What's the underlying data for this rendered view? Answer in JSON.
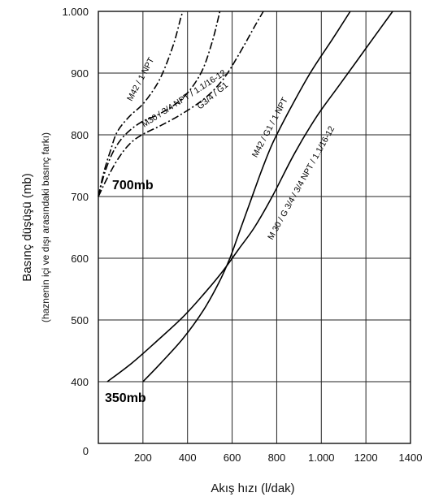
{
  "chart_data": {
    "type": "line",
    "xlabel": "Akış hızı (l/dak)",
    "ylabel": "Basınç düşüşü (mb)",
    "ylabel_sub": "(haznenin içi ve dışı arasındaki basınç farkı)",
    "xlim": [
      0,
      1400
    ],
    "ylim": [
      300,
      1000
    ],
    "x_ticks": [
      "0",
      "200",
      "400",
      "600",
      "800",
      "1.000",
      "1200",
      "1400"
    ],
    "y_ticks": [
      "400",
      "500",
      "600",
      "700",
      "800",
      "900",
      "1.000"
    ],
    "grid": true,
    "band_labels": [
      "700mb",
      "350mb"
    ],
    "series": [
      {
        "name": "M42 / 1 NPT",
        "style": "dashdot",
        "points": [
          [
            0,
            700
          ],
          [
            25,
            740
          ],
          [
            55,
            775
          ],
          [
            85,
            805
          ],
          [
            140,
            830
          ],
          [
            200,
            850
          ],
          [
            260,
            880
          ],
          [
            300,
            910
          ],
          [
            340,
            950
          ],
          [
            370,
            990
          ],
          [
            380,
            1000
          ]
        ]
      },
      {
        "name": "M30 / 3/4 NPT / 1.1/16-12",
        "style": "dashdot",
        "points": [
          [
            0,
            700
          ],
          [
            30,
            740
          ],
          [
            70,
            775
          ],
          [
            120,
            800
          ],
          [
            190,
            820
          ],
          [
            280,
            835
          ],
          [
            380,
            860
          ],
          [
            460,
            900
          ],
          [
            510,
            950
          ],
          [
            545,
            1000
          ]
        ]
      },
      {
        "name": "G3/4 / G1",
        "style": "dashdot",
        "points": [
          [
            0,
            700
          ],
          [
            40,
            730
          ],
          [
            90,
            762
          ],
          [
            140,
            785
          ],
          [
            195,
            800
          ],
          [
            280,
            815
          ],
          [
            380,
            835
          ],
          [
            480,
            860
          ],
          [
            560,
            890
          ],
          [
            630,
            930
          ],
          [
            700,
            975
          ],
          [
            740,
            1000
          ]
        ]
      },
      {
        "name": "M42 / G1 / 1 NPT",
        "style": "solid",
        "points": [
          [
            200,
            400
          ],
          [
            280,
            430
          ],
          [
            380,
            470
          ],
          [
            470,
            515
          ],
          [
            540,
            560
          ],
          [
            590,
            600
          ],
          [
            630,
            640
          ],
          [
            680,
            690
          ],
          [
            730,
            740
          ],
          [
            780,
            785
          ],
          [
            850,
            835
          ],
          [
            950,
            900
          ],
          [
            1050,
            955
          ],
          [
            1130,
            1000
          ]
        ]
      },
      {
        "name": "M 30 / G 3/4 / 3/4 NPT / 1.1/16-12",
        "style": "solid",
        "points": [
          [
            40,
            400
          ],
          [
            150,
            430
          ],
          [
            260,
            465
          ],
          [
            380,
            505
          ],
          [
            480,
            545
          ],
          [
            560,
            580
          ],
          [
            630,
            615
          ],
          [
            700,
            650
          ],
          [
            780,
            700
          ],
          [
            880,
            770
          ],
          [
            980,
            830
          ],
          [
            1080,
            880
          ],
          [
            1200,
            940
          ],
          [
            1320,
            1000
          ]
        ]
      }
    ]
  }
}
